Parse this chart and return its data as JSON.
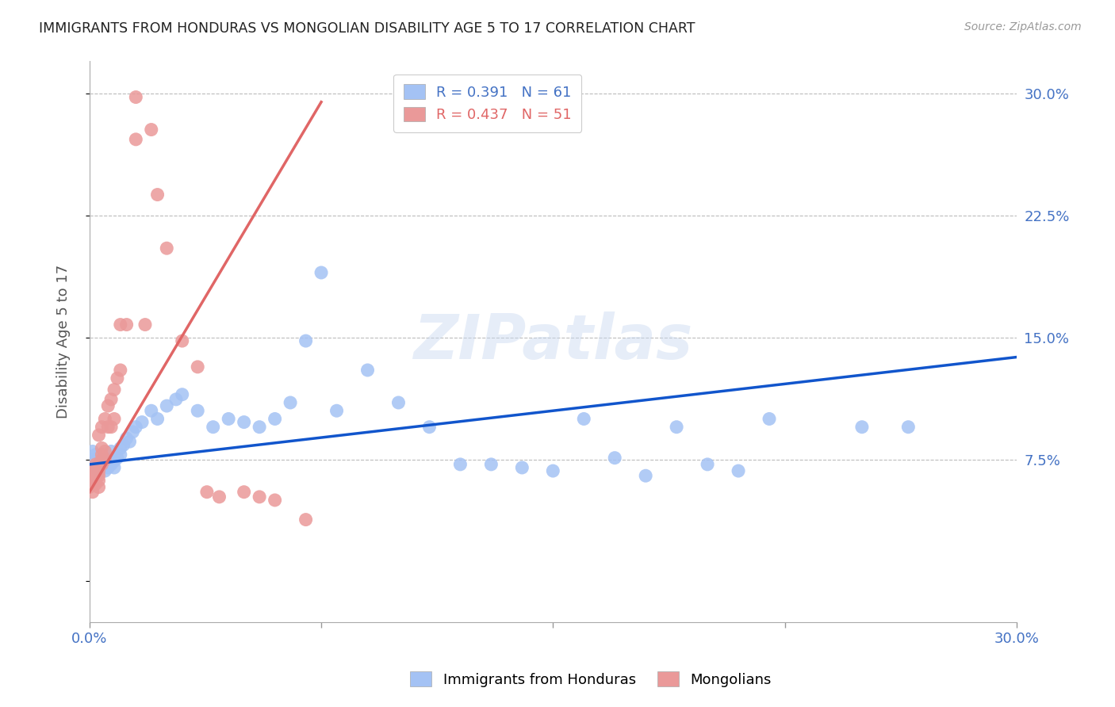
{
  "title": "IMMIGRANTS FROM HONDURAS VS MONGOLIAN DISABILITY AGE 5 TO 17 CORRELATION CHART",
  "source": "Source: ZipAtlas.com",
  "ylabel_left": "Disability Age 5 to 17",
  "xlabel_label1": "Immigrants from Honduras",
  "xlabel_label2": "Mongolians",
  "x_min": 0.0,
  "x_max": 0.3,
  "y_min": -0.025,
  "y_max": 0.32,
  "yticks": [
    0.0,
    0.075,
    0.15,
    0.225,
    0.3
  ],
  "ytick_labels": [
    "",
    "7.5%",
    "15.0%",
    "22.5%",
    "30.0%"
  ],
  "xticks": [
    0.0,
    0.075,
    0.15,
    0.225,
    0.3
  ],
  "xtick_labels": [
    "0.0%",
    "",
    "",
    "",
    "30.0%"
  ],
  "R_blue": 0.391,
  "N_blue": 61,
  "R_pink": 0.437,
  "N_pink": 51,
  "blue_color": "#a4c2f4",
  "pink_color": "#ea9999",
  "blue_line_color": "#1155cc",
  "pink_line_color": "#e06666",
  "blue_trend_x": [
    0.0,
    0.3
  ],
  "blue_trend_y": [
    0.072,
    0.138
  ],
  "pink_trend_x": [
    0.0,
    0.075
  ],
  "pink_trend_y": [
    0.055,
    0.295
  ],
  "watermark": "ZIPatlas",
  "blue_scatter_x": [
    0.001,
    0.001,
    0.002,
    0.002,
    0.002,
    0.003,
    0.003,
    0.003,
    0.003,
    0.004,
    0.004,
    0.004,
    0.005,
    0.005,
    0.005,
    0.006,
    0.006,
    0.007,
    0.007,
    0.008,
    0.008,
    0.009,
    0.01,
    0.01,
    0.011,
    0.012,
    0.013,
    0.014,
    0.015,
    0.017,
    0.02,
    0.022,
    0.025,
    0.028,
    0.03,
    0.035,
    0.04,
    0.045,
    0.05,
    0.055,
    0.06,
    0.065,
    0.07,
    0.075,
    0.08,
    0.09,
    0.1,
    0.11,
    0.12,
    0.13,
    0.14,
    0.15,
    0.16,
    0.17,
    0.18,
    0.19,
    0.2,
    0.21,
    0.22,
    0.25,
    0.265
  ],
  "blue_scatter_y": [
    0.075,
    0.08,
    0.072,
    0.078,
    0.07,
    0.074,
    0.076,
    0.072,
    0.068,
    0.073,
    0.07,
    0.075,
    0.071,
    0.068,
    0.073,
    0.07,
    0.075,
    0.072,
    0.08,
    0.074,
    0.07,
    0.076,
    0.078,
    0.082,
    0.084,
    0.088,
    0.086,
    0.092,
    0.095,
    0.098,
    0.105,
    0.1,
    0.108,
    0.112,
    0.115,
    0.105,
    0.095,
    0.1,
    0.098,
    0.095,
    0.1,
    0.11,
    0.148,
    0.19,
    0.105,
    0.13,
    0.11,
    0.095,
    0.072,
    0.072,
    0.07,
    0.068,
    0.1,
    0.076,
    0.065,
    0.095,
    0.072,
    0.068,
    0.1,
    0.095,
    0.095
  ],
  "pink_scatter_x": [
    0.0,
    0.0,
    0.0,
    0.001,
    0.001,
    0.001,
    0.001,
    0.001,
    0.002,
    0.002,
    0.002,
    0.002,
    0.002,
    0.003,
    0.003,
    0.003,
    0.003,
    0.003,
    0.003,
    0.004,
    0.004,
    0.004,
    0.004,
    0.004,
    0.005,
    0.005,
    0.005,
    0.006,
    0.006,
    0.007,
    0.007,
    0.008,
    0.008,
    0.009,
    0.01,
    0.01,
    0.012,
    0.015,
    0.015,
    0.018,
    0.02,
    0.022,
    0.025,
    0.03,
    0.035,
    0.038,
    0.042,
    0.05,
    0.055,
    0.06,
    0.07
  ],
  "pink_scatter_y": [
    0.058,
    0.062,
    0.065,
    0.055,
    0.06,
    0.062,
    0.065,
    0.068,
    0.06,
    0.063,
    0.065,
    0.068,
    0.072,
    0.058,
    0.062,
    0.065,
    0.068,
    0.072,
    0.09,
    0.072,
    0.075,
    0.078,
    0.082,
    0.095,
    0.075,
    0.08,
    0.1,
    0.095,
    0.108,
    0.095,
    0.112,
    0.1,
    0.118,
    0.125,
    0.13,
    0.158,
    0.158,
    0.272,
    0.298,
    0.158,
    0.278,
    0.238,
    0.205,
    0.148,
    0.132,
    0.055,
    0.052,
    0.055,
    0.052,
    0.05,
    0.038
  ]
}
